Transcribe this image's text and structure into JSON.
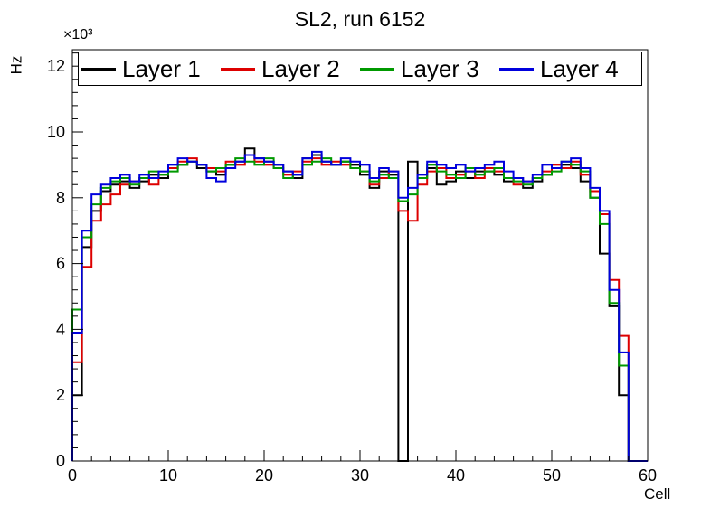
{
  "title": "SL2, run 6152",
  "chart_data": {
    "type": "line",
    "subtype": "step-histogram",
    "title": "SL2, run 6152",
    "xlabel": "Cell",
    "ylabel": "Hz",
    "y_multiplier_label": "×10³",
    "xlim": [
      0,
      60
    ],
    "ylim": [
      0,
      12500
    ],
    "grid": false,
    "legend_position": "top-inside",
    "x_major_ticks": [
      0,
      10,
      20,
      30,
      40,
      50,
      60
    ],
    "x_tick_display": [
      "0",
      "10",
      "20",
      "30",
      "40",
      "50",
      "60"
    ],
    "x_minor_step": 2,
    "y_major_ticks": [
      0,
      2000,
      4000,
      6000,
      8000,
      10000,
      12000
    ],
    "y_tick_display": [
      "0",
      "2",
      "4",
      "6",
      "8",
      "10",
      "12"
    ],
    "y_minor_step": 400,
    "x_bin_edges_note": "values are per-cell bin contents, bins of width 1 starting at cell 0",
    "series": [
      {
        "name": "Layer 1",
        "color": "#000000",
        "values": [
          2000,
          6500,
          7600,
          8200,
          8400,
          8500,
          8300,
          8500,
          8700,
          8600,
          8900,
          9000,
          9100,
          8900,
          8800,
          8700,
          9000,
          9100,
          9500,
          9200,
          9100,
          9000,
          8800,
          8600,
          9200,
          9300,
          9100,
          9000,
          9100,
          9000,
          8700,
          8300,
          8800,
          8700,
          0,
          9100,
          8600,
          8900,
          8400,
          8500,
          8800,
          8600,
          8800,
          8800,
          8700,
          8500,
          8600,
          8300,
          8500,
          8700,
          8900,
          9000,
          8900,
          8500,
          8000,
          6300,
          4700,
          2000,
          0,
          0
        ]
      },
      {
        "name": "Layer 2",
        "color": "#dd0000",
        "values": [
          3000,
          5900,
          7300,
          7800,
          8100,
          8400,
          8500,
          8600,
          8400,
          8700,
          8900,
          9100,
          9200,
          9000,
          8900,
          8800,
          9100,
          9000,
          9300,
          9100,
          9000,
          8900,
          8700,
          8800,
          9100,
          9200,
          9000,
          9100,
          9000,
          8900,
          8800,
          8400,
          8600,
          8800,
          7600,
          7300,
          8400,
          8800,
          8900,
          8600,
          8700,
          8800,
          8600,
          8900,
          8800,
          8600,
          8400,
          8500,
          8600,
          8800,
          9000,
          8900,
          9100,
          8700,
          8200,
          7500,
          5500,
          3800,
          0,
          0
        ]
      },
      {
        "name": "Layer 3",
        "color": "#009900",
        "values": [
          4600,
          6800,
          7800,
          8300,
          8500,
          8600,
          8400,
          8600,
          8800,
          8700,
          8800,
          9000,
          9100,
          9000,
          8800,
          8900,
          9000,
          9200,
          9100,
          9000,
          9200,
          8900,
          8600,
          8700,
          9000,
          9100,
          9200,
          9000,
          9100,
          8900,
          8800,
          8500,
          8700,
          8600,
          7900,
          8100,
          8600,
          9000,
          8800,
          8700,
          8600,
          8900,
          8700,
          8800,
          8900,
          8600,
          8500,
          8400,
          8600,
          8700,
          8800,
          9100,
          9000,
          8800,
          8000,
          7200,
          4800,
          2900,
          0,
          0
        ]
      },
      {
        "name": "Layer 4",
        "color": "#0000dd",
        "values": [
          3900,
          7000,
          8100,
          8400,
          8600,
          8700,
          8500,
          8700,
          8600,
          8800,
          9000,
          9200,
          9100,
          9000,
          8600,
          8500,
          8900,
          9100,
          9300,
          9200,
          9100,
          9000,
          8800,
          8700,
          9200,
          9400,
          9100,
          9000,
          9200,
          9100,
          9000,
          8600,
          8900,
          8800,
          8000,
          8300,
          8700,
          9100,
          9000,
          8900,
          9000,
          8800,
          8900,
          9000,
          9100,
          8800,
          8600,
          8500,
          8700,
          9000,
          8900,
          9100,
          9200,
          8900,
          8300,
          7600,
          5200,
          3300,
          0,
          0
        ]
      }
    ]
  }
}
